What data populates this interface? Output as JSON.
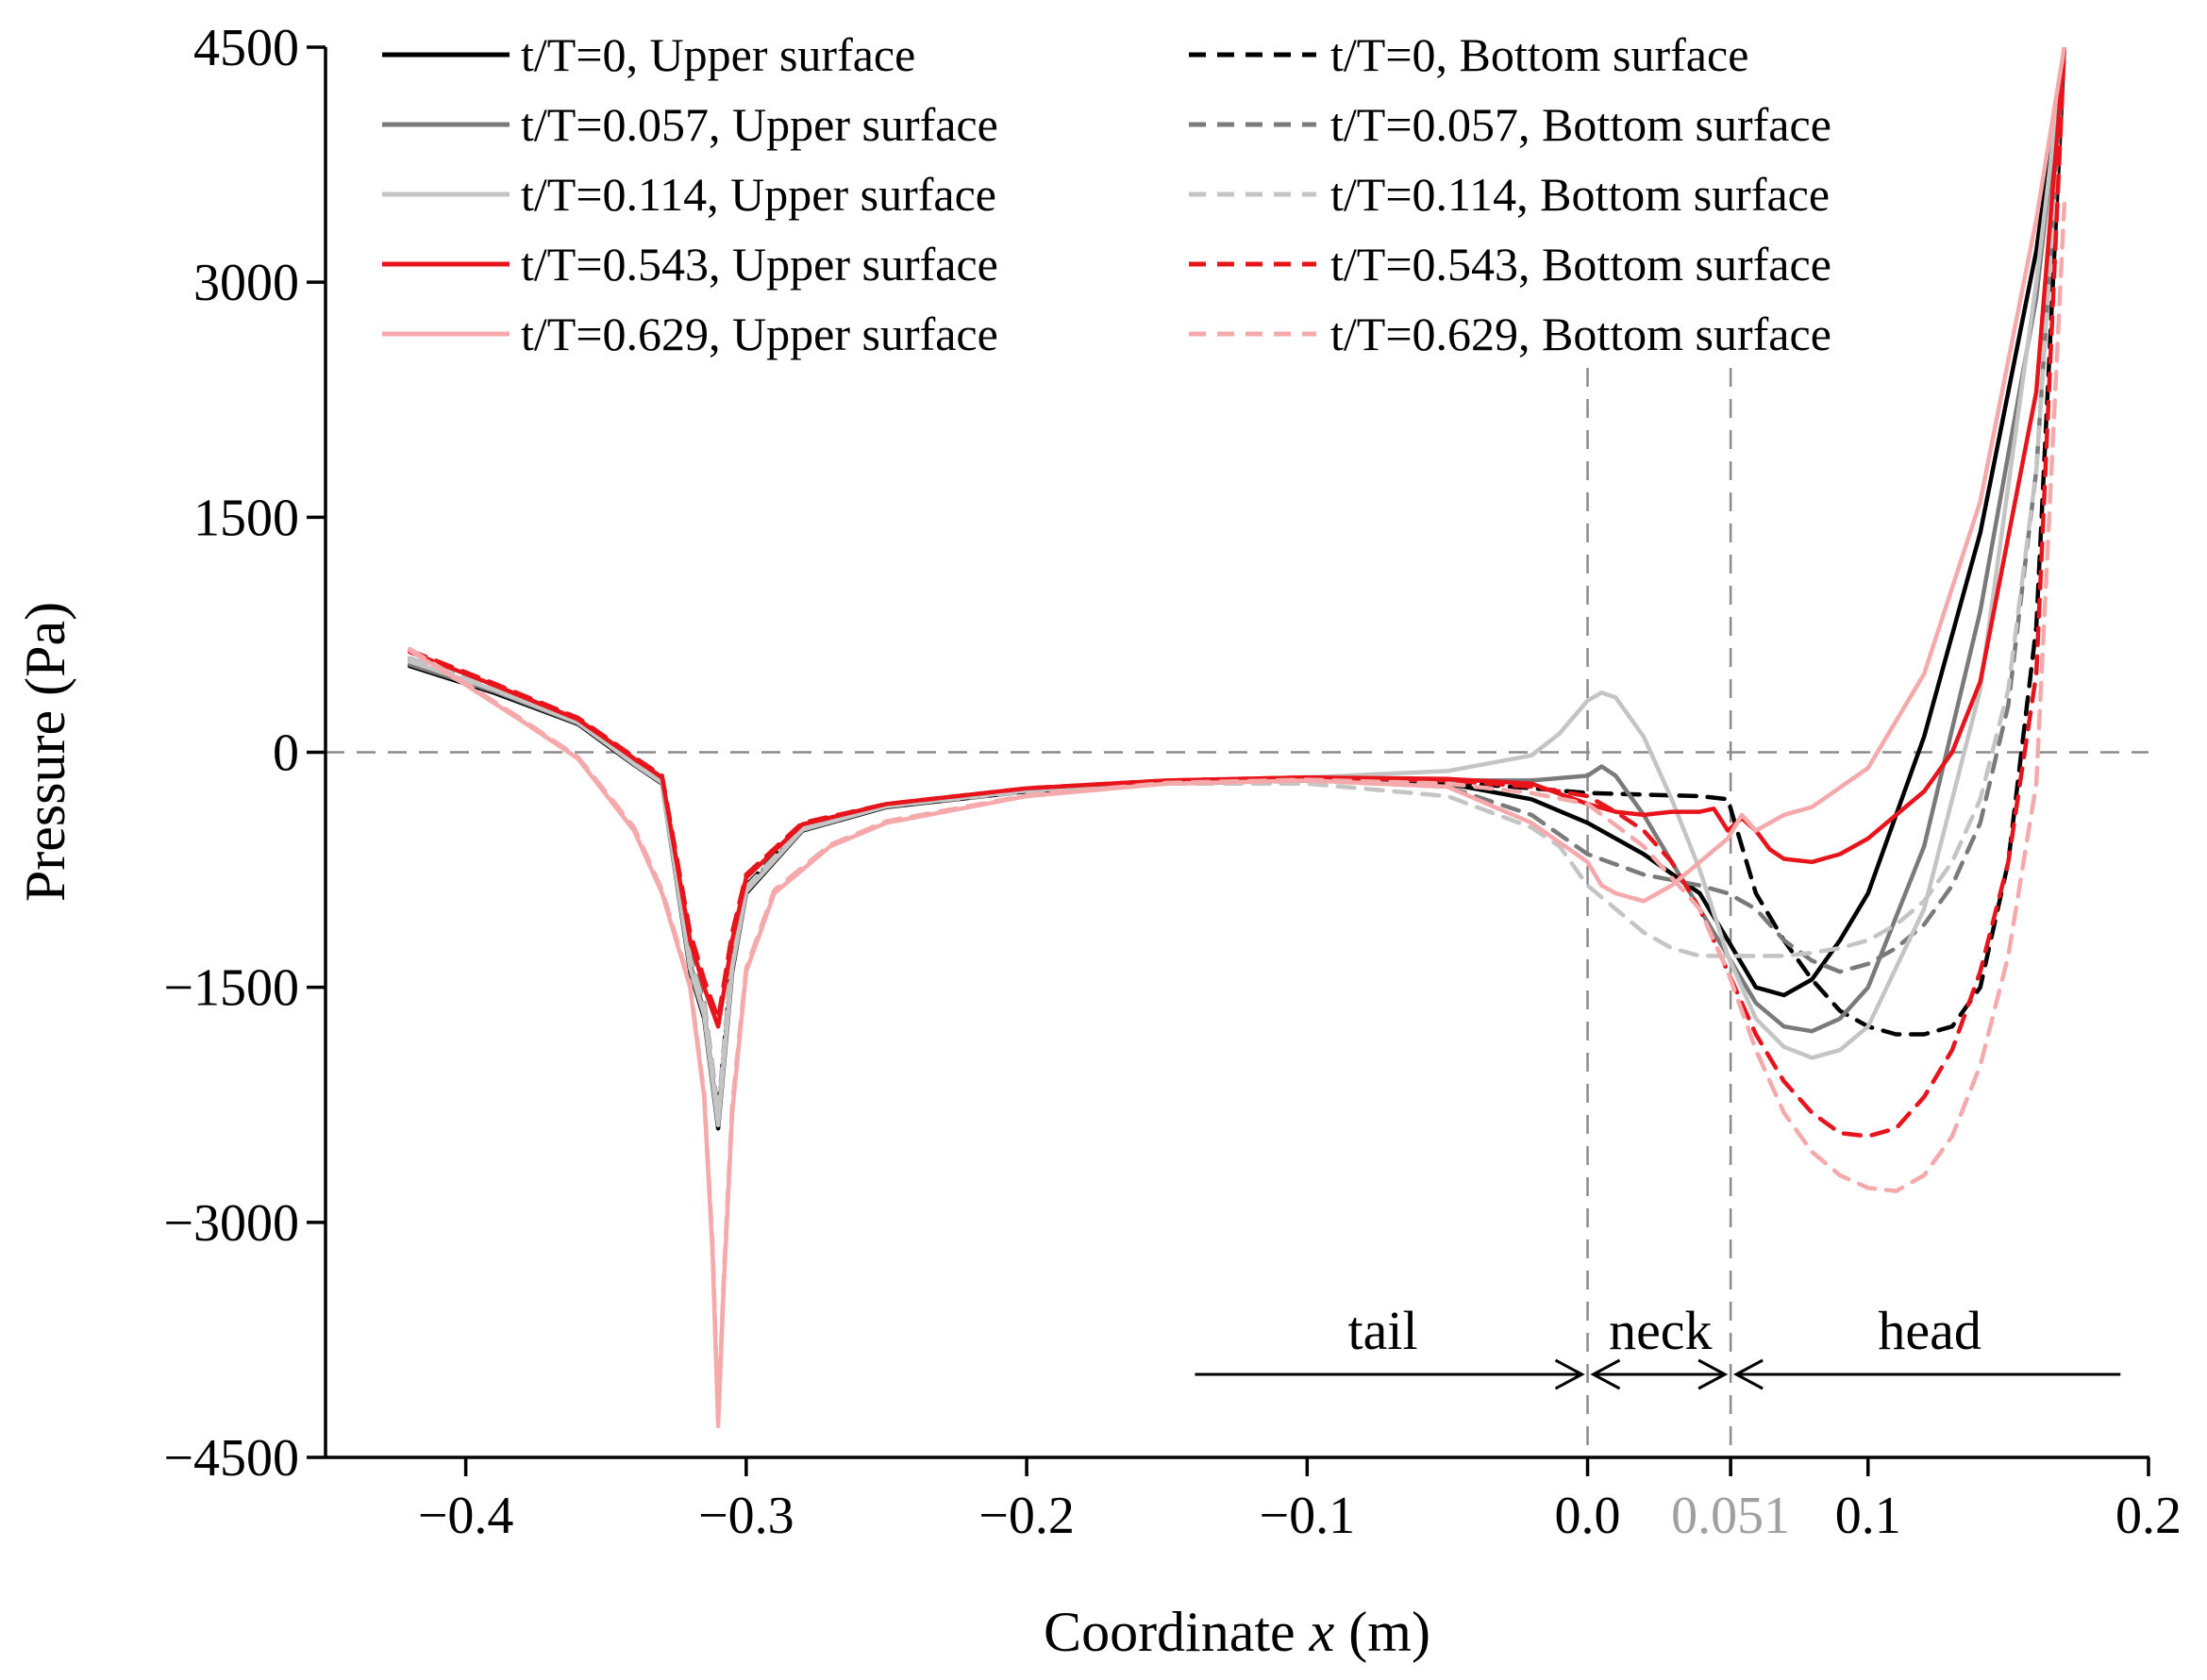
{
  "chart_data": {
    "type": "line",
    "title": "",
    "xlabel_prefix": "Coordinate ",
    "xlabel_var": "x",
    "xlabel_suffix": " (m)",
    "ylabel": "Pressure (Pa)",
    "xlim": [
      -0.45,
      0.2
    ],
    "ylim": [
      -4500,
      4500
    ],
    "x_ticks": [
      {
        "value": -0.4,
        "label": "−0.4"
      },
      {
        "value": -0.3,
        "label": "−0.3"
      },
      {
        "value": -0.2,
        "label": "−0.2"
      },
      {
        "value": -0.1,
        "label": "−0.1"
      },
      {
        "value": 0.0,
        "label": "0.0"
      },
      {
        "value": 0.051,
        "label": "0.051",
        "color": "#a0a0a0"
      },
      {
        "value": 0.1,
        "label": "0.1"
      },
      {
        "value": 0.2,
        "label": "0.2"
      }
    ],
    "y_ticks": [
      {
        "value": 4500,
        "label": "4500"
      },
      {
        "value": 3000,
        "label": "3000"
      },
      {
        "value": 1500,
        "label": "1500"
      },
      {
        "value": 0,
        "label": "0"
      },
      {
        "value": -1500,
        "label": "−1500"
      },
      {
        "value": -3000,
        "label": "−3000"
      },
      {
        "value": -4500,
        "label": "−4500"
      }
    ],
    "reference_lines": {
      "y": 0,
      "x": [
        0.0,
        0.051
      ]
    },
    "regions": [
      {
        "label": "tail",
        "from": -0.14,
        "to": 0.0,
        "label_x": -0.073
      },
      {
        "label": "neck",
        "from": 0.0,
        "to": 0.051,
        "label_x": 0.026
      },
      {
        "label": "head",
        "from": 0.051,
        "to": 0.19,
        "label_x": 0.122
      }
    ],
    "series": [
      {
        "name": "t/T=0, Upper surface",
        "color": "#000000",
        "dash": "solid",
        "x": [
          -0.42,
          -0.39,
          -0.36,
          -0.34,
          -0.33,
          -0.32,
          -0.315,
          -0.31,
          -0.305,
          -0.3,
          -0.28,
          -0.25,
          -0.2,
          -0.15,
          -0.1,
          -0.05,
          -0.02,
          0.0,
          0.02,
          0.04,
          0.05,
          0.06,
          0.07,
          0.08,
          0.09,
          0.1,
          0.12,
          0.14,
          0.16,
          0.17
        ],
        "values": [
          550,
          380,
          180,
          -80,
          -200,
          -1400,
          -1700,
          -2400,
          -1400,
          -900,
          -500,
          -350,
          -250,
          -200,
          -180,
          -200,
          -300,
          -450,
          -650,
          -900,
          -1200,
          -1500,
          -1550,
          -1450,
          -1200,
          -900,
          100,
          1400,
          3200,
          4500
        ]
      },
      {
        "name": "t/T=0, Bottom surface",
        "color": "#000000",
        "dash": "dash",
        "x": [
          -0.42,
          -0.39,
          -0.36,
          -0.34,
          -0.33,
          -0.32,
          -0.315,
          -0.31,
          -0.305,
          -0.3,
          -0.28,
          -0.25,
          -0.2,
          -0.15,
          -0.1,
          -0.05,
          -0.02,
          0.0,
          0.02,
          0.04,
          0.05,
          0.06,
          0.07,
          0.08,
          0.09,
          0.1,
          0.11,
          0.12,
          0.13,
          0.14,
          0.15,
          0.16,
          0.17
        ],
        "values": [
          600,
          420,
          200,
          -50,
          -180,
          -1300,
          -1600,
          -2300,
          -1300,
          -850,
          -480,
          -340,
          -240,
          -190,
          -170,
          -190,
          -230,
          -260,
          -270,
          -280,
          -300,
          -900,
          -1200,
          -1450,
          -1650,
          -1750,
          -1800,
          -1800,
          -1750,
          -1500,
          -700,
          800,
          4500
        ]
      },
      {
        "name": "t/T=0.057, Upper surface",
        "color": "#7a7a7a",
        "dash": "solid",
        "x": [
          -0.42,
          -0.39,
          -0.36,
          -0.34,
          -0.33,
          -0.32,
          -0.315,
          -0.31,
          -0.305,
          -0.3,
          -0.28,
          -0.25,
          -0.2,
          -0.15,
          -0.1,
          -0.05,
          -0.02,
          0.0,
          0.005,
          0.01,
          0.02,
          0.03,
          0.04,
          0.05,
          0.06,
          0.07,
          0.08,
          0.09,
          0.1,
          0.12,
          0.14,
          0.16,
          0.17
        ],
        "values": [
          560,
          390,
          185,
          -70,
          -190,
          -1350,
          -1650,
          -2350,
          -1350,
          -880,
          -490,
          -340,
          -240,
          -190,
          -170,
          -180,
          -180,
          -150,
          -90,
          -150,
          -400,
          -700,
          -1000,
          -1300,
          -1600,
          -1750,
          -1780,
          -1700,
          -1500,
          -600,
          900,
          2900,
          4500
        ]
      },
      {
        "name": "t/T=0.057, Bottom surface",
        "color": "#7a7a7a",
        "dash": "dash",
        "x": [
          -0.42,
          -0.39,
          -0.36,
          -0.34,
          -0.33,
          -0.32,
          -0.315,
          -0.31,
          -0.305,
          -0.3,
          -0.28,
          -0.25,
          -0.2,
          -0.15,
          -0.1,
          -0.05,
          -0.02,
          0.0,
          0.02,
          0.04,
          0.05,
          0.06,
          0.07,
          0.08,
          0.09,
          0.1,
          0.11,
          0.12,
          0.13,
          0.14,
          0.15,
          0.16,
          0.17
        ],
        "values": [
          590,
          410,
          195,
          -60,
          -185,
          -1320,
          -1620,
          -2320,
          -1320,
          -860,
          -485,
          -345,
          -245,
          -195,
          -180,
          -220,
          -400,
          -650,
          -780,
          -850,
          -900,
          -1000,
          -1200,
          -1330,
          -1400,
          -1350,
          -1250,
          -1100,
          -850,
          -450,
          300,
          1800,
          4500
        ]
      },
      {
        "name": "t/T=0.114, Upper surface",
        "color": "#c4c4c4",
        "dash": "solid",
        "x": [
          -0.42,
          -0.39,
          -0.36,
          -0.34,
          -0.33,
          -0.32,
          -0.315,
          -0.31,
          -0.305,
          -0.3,
          -0.28,
          -0.25,
          -0.2,
          -0.15,
          -0.1,
          -0.05,
          -0.02,
          -0.01,
          0.0,
          0.005,
          0.01,
          0.02,
          0.03,
          0.04,
          0.05,
          0.06,
          0.07,
          0.08,
          0.09,
          0.1,
          0.12,
          0.14,
          0.16,
          0.17
        ],
        "values": [
          580,
          400,
          190,
          -75,
          -195,
          -1380,
          -1680,
          -2380,
          -1380,
          -890,
          -495,
          -345,
          -245,
          -190,
          -160,
          -120,
          -20,
          120,
          330,
          380,
          350,
          100,
          -300,
          -750,
          -1300,
          -1700,
          -1880,
          -1950,
          -1900,
          -1750,
          -1000,
          400,
          3000,
          4500
        ]
      },
      {
        "name": "t/T=0.114, Bottom surface",
        "color": "#c4c4c4",
        "dash": "dash",
        "x": [
          -0.42,
          -0.39,
          -0.36,
          -0.34,
          -0.33,
          -0.32,
          -0.315,
          -0.31,
          -0.305,
          -0.3,
          -0.28,
          -0.25,
          -0.2,
          -0.15,
          -0.1,
          -0.05,
          -0.02,
          -0.01,
          0.0,
          0.01,
          0.02,
          0.03,
          0.04,
          0.05,
          0.06,
          0.07,
          0.08,
          0.09,
          0.1,
          0.11,
          0.12,
          0.13,
          0.14,
          0.15,
          0.16,
          0.17
        ],
        "values": [
          600,
          420,
          200,
          -55,
          -180,
          -1310,
          -1610,
          -2310,
          -1310,
          -860,
          -480,
          -345,
          -250,
          -200,
          -200,
          -280,
          -480,
          -600,
          -850,
          -1000,
          -1150,
          -1250,
          -1300,
          -1300,
          -1300,
          -1300,
          -1280,
          -1250,
          -1200,
          -1100,
          -950,
          -700,
          -300,
          400,
          1800,
          4500
        ]
      },
      {
        "name": "t/T=0.543, Upper surface",
        "color": "#e8141b",
        "dash": "solid",
        "x": [
          -0.42,
          -0.39,
          -0.36,
          -0.34,
          -0.33,
          -0.32,
          -0.315,
          -0.31,
          -0.305,
          -0.3,
          -0.28,
          -0.25,
          -0.2,
          -0.15,
          -0.1,
          -0.05,
          -0.02,
          0.0,
          0.01,
          0.02,
          0.03,
          0.04,
          0.045,
          0.05,
          0.055,
          0.06,
          0.065,
          0.07,
          0.08,
          0.09,
          0.1,
          0.12,
          0.13,
          0.14,
          0.16,
          0.17
        ],
        "values": [
          640,
          430,
          210,
          -40,
          -160,
          -1200,
          -1500,
          -1750,
          -1200,
          -800,
          -460,
          -330,
          -230,
          -180,
          -160,
          -170,
          -200,
          -330,
          -380,
          -400,
          -380,
          -380,
          -360,
          -500,
          -420,
          -500,
          -620,
          -680,
          -700,
          -650,
          -550,
          -250,
          0,
          450,
          2300,
          4500
        ]
      },
      {
        "name": "t/T=0.543, Bottom surface",
        "color": "#e8141b",
        "dash": "dash",
        "x": [
          -0.42,
          -0.39,
          -0.36,
          -0.34,
          -0.33,
          -0.32,
          -0.315,
          -0.31,
          -0.305,
          -0.3,
          -0.28,
          -0.25,
          -0.2,
          -0.15,
          -0.1,
          -0.05,
          -0.02,
          0.0,
          0.01,
          0.02,
          0.03,
          0.04,
          0.05,
          0.06,
          0.07,
          0.08,
          0.09,
          0.1,
          0.11,
          0.12,
          0.13,
          0.14,
          0.15,
          0.16,
          0.17
        ],
        "values": [
          650,
          440,
          220,
          -30,
          -150,
          -1150,
          -1450,
          -1700,
          -1150,
          -780,
          -450,
          -330,
          -230,
          -180,
          -160,
          -180,
          -220,
          -280,
          -380,
          -500,
          -700,
          -1000,
          -1400,
          -1800,
          -2100,
          -2300,
          -2430,
          -2450,
          -2400,
          -2200,
          -1900,
          -1400,
          -700,
          500,
          4500
        ]
      },
      {
        "name": "t/T=0.629, Upper surface",
        "color": "#f5a9aa",
        "dash": "solid",
        "x": [
          -0.42,
          -0.4,
          -0.38,
          -0.36,
          -0.34,
          -0.33,
          -0.32,
          -0.315,
          -0.312,
          -0.31,
          -0.308,
          -0.305,
          -0.3,
          -0.29,
          -0.27,
          -0.25,
          -0.2,
          -0.15,
          -0.1,
          -0.05,
          -0.02,
          0.0,
          0.005,
          0.01,
          0.02,
          0.03,
          0.04,
          0.05,
          0.055,
          0.06,
          0.065,
          0.07,
          0.08,
          0.1,
          0.12,
          0.14,
          0.16,
          0.17
        ],
        "values": [
          650,
          430,
          200,
          -40,
          -500,
          -900,
          -1500,
          -2200,
          -3200,
          -4300,
          -3400,
          -2300,
          -1400,
          -900,
          -600,
          -450,
          -280,
          -200,
          -180,
          -220,
          -450,
          -700,
          -850,
          -900,
          -950,
          -850,
          -700,
          -550,
          -400,
          -500,
          -450,
          -400,
          -350,
          -100,
          500,
          1600,
          3400,
          4500
        ]
      },
      {
        "name": "t/T=0.629, Bottom surface",
        "color": "#f5a9aa",
        "dash": "dash",
        "x": [
          -0.42,
          -0.4,
          -0.38,
          -0.36,
          -0.34,
          -0.33,
          -0.32,
          -0.315,
          -0.312,
          -0.31,
          -0.308,
          -0.305,
          -0.3,
          -0.29,
          -0.27,
          -0.25,
          -0.2,
          -0.15,
          -0.1,
          -0.05,
          -0.02,
          0.0,
          0.02,
          0.04,
          0.05,
          0.06,
          0.07,
          0.08,
          0.09,
          0.1,
          0.11,
          0.12,
          0.13,
          0.14,
          0.15,
          0.16,
          0.17
        ],
        "values": [
          660,
          440,
          210,
          -30,
          -480,
          -880,
          -1480,
          -2180,
          -3150,
          -4250,
          -3350,
          -2250,
          -1380,
          -880,
          -590,
          -440,
          -275,
          -195,
          -175,
          -200,
          -260,
          -330,
          -600,
          -1000,
          -1400,
          -1900,
          -2300,
          -2550,
          -2700,
          -2780,
          -2800,
          -2700,
          -2450,
          -2000,
          -1300,
          -200,
          3500
        ]
      }
    ]
  }
}
